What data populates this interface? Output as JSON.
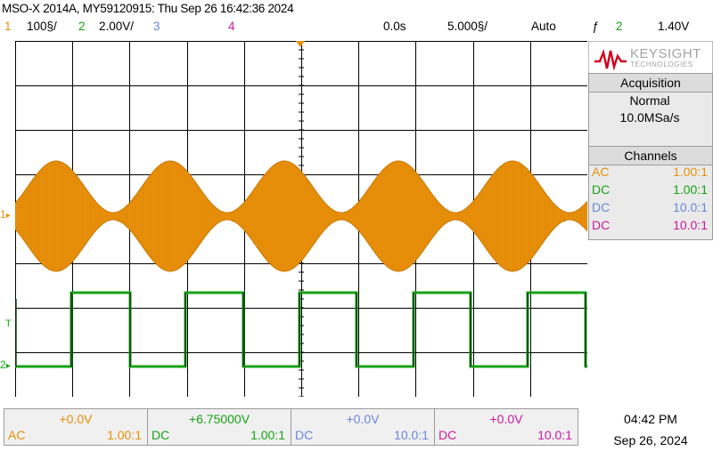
{
  "header": {
    "title": "MSO-X 2014A, MY59120915: Thu Sep 26 16:42:36 2024",
    "ch1_num": "1",
    "ch1_scale": "100§/",
    "ch2_num": "2",
    "ch2_scale": "2.00V/",
    "ch3_num": "3",
    "ch4_num": "4",
    "time_pos": "0.0s",
    "time_scale": "5.000§/",
    "trigger_mode": "Auto",
    "trig_symbol": "ƒ",
    "trig_source": "2",
    "trig_level": "1.40V"
  },
  "screen": {
    "ch1_marker": "1",
    "ch2_marker": "2",
    "trig_marker": "T"
  },
  "brand": {
    "name": "KEYSIGHT",
    "sub": "TECHNOLOGIES"
  },
  "acquisition": {
    "title": "Acquisition",
    "mode": "Normal",
    "rate": "10.0MSa/s"
  },
  "channels": {
    "title": "Channels",
    "rows": [
      {
        "coupling": "AC",
        "ratio": "1.00:1"
      },
      {
        "coupling": "DC",
        "ratio": "1.00:1"
      },
      {
        "coupling": "DC",
        "ratio": "10.0:1"
      },
      {
        "coupling": "DC",
        "ratio": "10.0:1"
      }
    ]
  },
  "bottom": {
    "cells": [
      {
        "offset": "+0.0V",
        "coupling": "AC",
        "ratio": "1.00:1"
      },
      {
        "offset": "+6.75000V",
        "coupling": "DC",
        "ratio": "1.00:1"
      },
      {
        "offset": "+0.0V",
        "coupling": "DC",
        "ratio": "10.0:1"
      },
      {
        "offset": "+0.0V",
        "coupling": "DC",
        "ratio": "10.0:1"
      }
    ]
  },
  "clock": {
    "time": "04:42 PM",
    "date": "Sep 26, 2024"
  },
  "colors": {
    "ch1": "#e8900a",
    "ch2": "#16a216",
    "ch3": "#6a86d8",
    "ch4": "#c81aa0",
    "grid": "#000000",
    "trigger": "#e8900a",
    "brand": "#d0021b"
  }
}
